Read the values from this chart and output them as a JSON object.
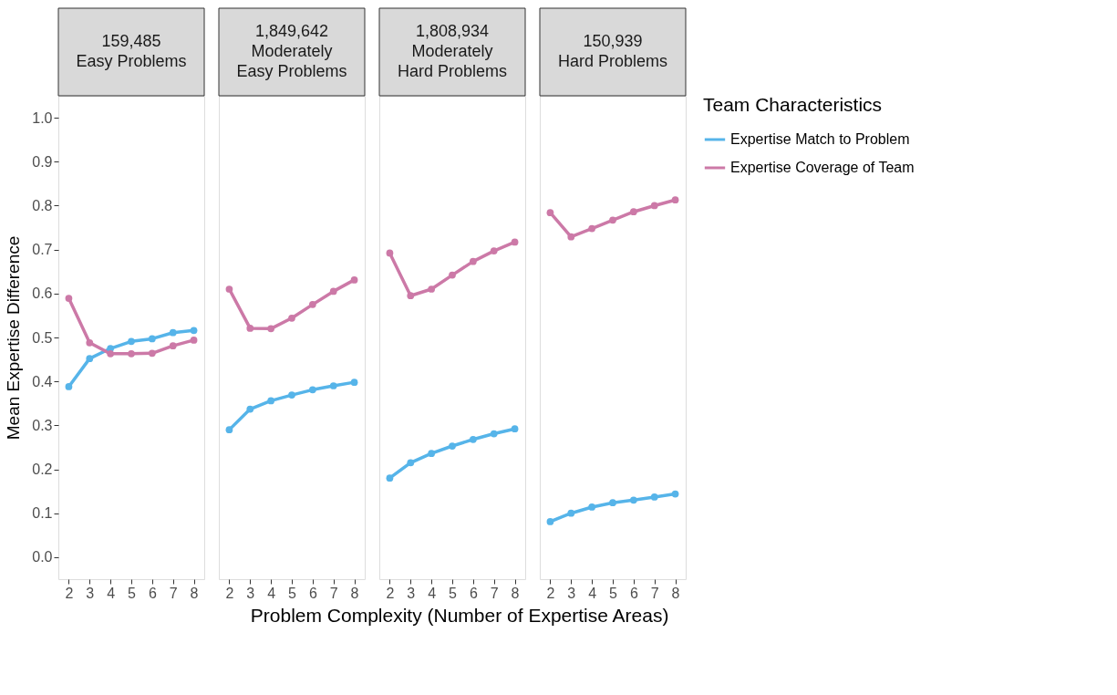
{
  "chart_data": [
    {
      "type": "line",
      "title": "159,485\nEasy Problems",
      "xlabel": "Problem Complexity (Number of Expertise Areas)",
      "ylabel": "Mean Expertise Difference",
      "x": [
        2,
        3,
        4,
        5,
        6,
        7,
        8
      ],
      "xlim": [
        1.5,
        8.5
      ],
      "xticks": [
        2,
        3,
        4,
        5,
        6,
        7,
        8
      ],
      "ylim": [
        -0.05,
        1.05
      ],
      "yticks": [
        {
          "value": 0,
          "label": "0.0"
        },
        0.1,
        0.2,
        0.3,
        0.4,
        0.5,
        0.6,
        0.7,
        0.8,
        0.9,
        {
          "value": 1,
          "label": "1.0"
        }
      ],
      "grid": false,
      "marker": "circle",
      "line_style": "solid",
      "legend": "right",
      "series": [
        {
          "name": "Expertise Match to Problem",
          "color": "#56b4e9",
          "values": [
            0.388,
            0.452,
            0.475,
            0.491,
            0.497,
            0.511,
            0.516
          ]
        },
        {
          "name": "Expertise Coverage of Team",
          "color": "#cc79a7",
          "values": [
            0.589,
            0.488,
            0.463,
            0.463,
            0.464,
            0.481,
            0.494
          ]
        }
      ]
    },
    {
      "type": "line",
      "title": "1,849,642\nModerately\nEasy Problems",
      "x": [
        2,
        3,
        4,
        5,
        6,
        7,
        8
      ],
      "xlim": [
        1.5,
        8.5
      ],
      "xticks": [
        2,
        3,
        4,
        5,
        6,
        7,
        8
      ],
      "ylim": [
        -0.05,
        1.05
      ],
      "tick_labels": "x",
      "grid": false,
      "marker": "circle",
      "line_style": "solid",
      "legend": "right",
      "series": [
        {
          "name": "Expertise Match to Problem",
          "color": "#56b4e9",
          "values": [
            0.29,
            0.337,
            0.356,
            0.369,
            0.381,
            0.39,
            0.398
          ]
        },
        {
          "name": "Expertise Coverage of Team",
          "color": "#cc79a7",
          "values": [
            0.61,
            0.521,
            0.52,
            0.544,
            0.575,
            0.605,
            0.631
          ]
        }
      ]
    },
    {
      "type": "line",
      "title": "1,808,934\nModerately\nHard Problems",
      "x": [
        2,
        3,
        4,
        5,
        6,
        7,
        8
      ],
      "xlim": [
        1.5,
        8.5
      ],
      "xticks": [
        2,
        3,
        4,
        5,
        6,
        7,
        8
      ],
      "ylim": [
        -0.05,
        1.05
      ],
      "tick_labels": "x",
      "grid": false,
      "marker": "circle",
      "line_style": "solid",
      "legend": "right",
      "series": [
        {
          "name": "Expertise Match to Problem",
          "color": "#56b4e9",
          "values": [
            0.18,
            0.215,
            0.236,
            0.253,
            0.268,
            0.281,
            0.292
          ]
        },
        {
          "name": "Expertise Coverage of Team",
          "color": "#cc79a7",
          "values": [
            0.692,
            0.595,
            0.61,
            0.642,
            0.673,
            0.697,
            0.717
          ]
        }
      ]
    },
    {
      "type": "line",
      "title": "150,939\nHard Problems",
      "legend_title": "Team Characteristics",
      "x": [
        2,
        3,
        4,
        5,
        6,
        7,
        8
      ],
      "xlim": [
        1.5,
        8.5
      ],
      "xticks": [
        2,
        3,
        4,
        5,
        6,
        7,
        8
      ],
      "ylim": [
        -0.05,
        1.05
      ],
      "tick_labels": "x",
      "grid": false,
      "marker": "circle",
      "line_style": "solid",
      "legend": "right",
      "series": [
        {
          "name": "Expertise Match to Problem",
          "color": "#56b4e9",
          "values": [
            0.081,
            0.1,
            0.114,
            0.124,
            0.13,
            0.137,
            0.144
          ]
        },
        {
          "name": "Expertise Coverage of Team",
          "color": "#cc79a7",
          "values": [
            0.784,
            0.729,
            0.748,
            0.767,
            0.786,
            0.8,
            0.813
          ]
        }
      ]
    }
  ]
}
